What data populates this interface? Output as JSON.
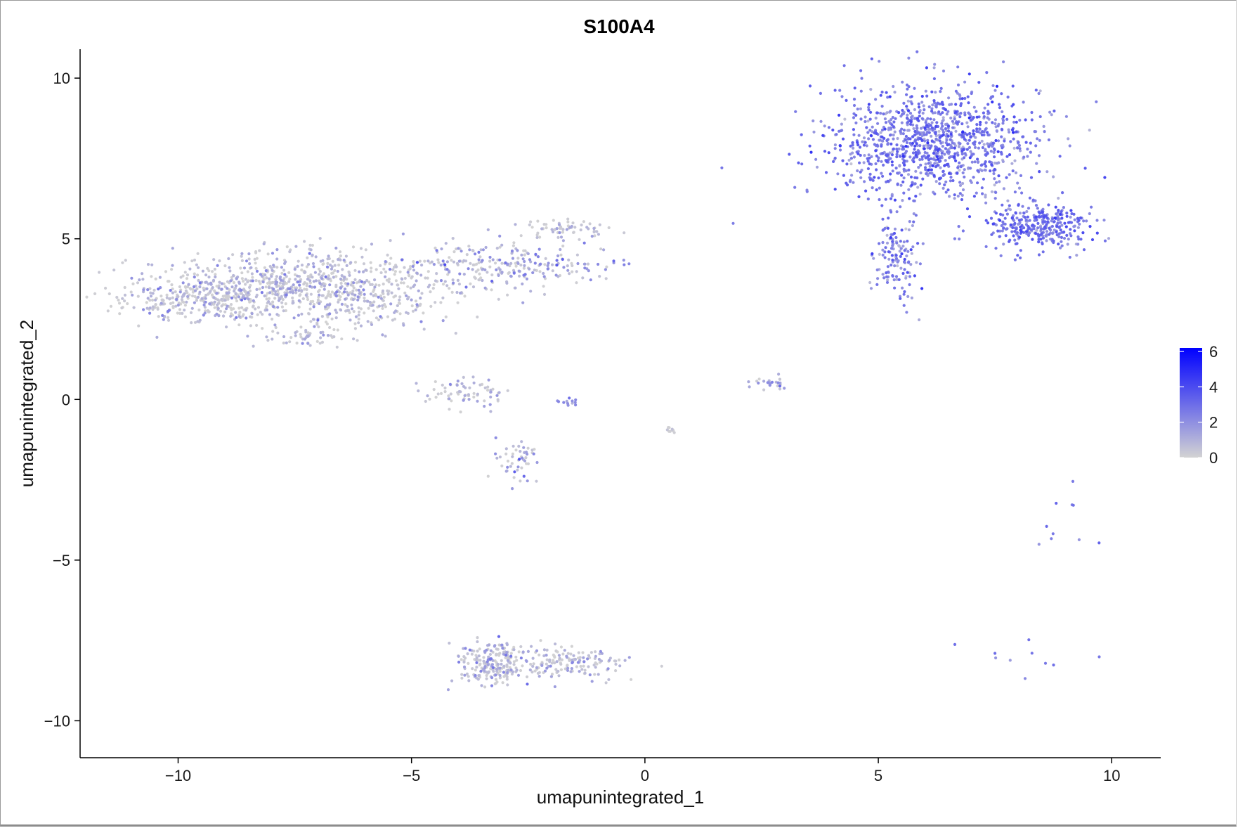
{
  "chart_data": {
    "type": "scatter",
    "title": "S100A4",
    "xlabel": "umapunintegrated_1",
    "ylabel": "umapunintegrated_2",
    "xlim": [
      -12.1,
      11.05
    ],
    "ylim": [
      -11.15,
      10.9
    ],
    "x_ticks": [
      -10,
      -5,
      0,
      5,
      10
    ],
    "y_ticks": [
      -10,
      -5,
      0,
      5,
      10
    ],
    "x_tick_labels": [
      "−10",
      "−5",
      "0",
      "5",
      "10"
    ],
    "y_tick_labels": [
      "−10",
      "−5",
      "0",
      "5",
      "10"
    ],
    "grid": false,
    "color_scale": {
      "name": "expression",
      "low_color": "#d3d3d3",
      "high_color": "#0000ff",
      "min": 0,
      "max": 6.2,
      "ticks": [
        0,
        2,
        4,
        6
      ],
      "tick_labels": [
        "0",
        "2",
        "4",
        "6"
      ]
    },
    "legend_placement": "right",
    "clusters": [
      {
        "cx": 6.2,
        "cy": 8.0,
        "sx": 1.1,
        "sy": 0.9,
        "n": 1100,
        "expr": 2.6,
        "spread": 0.8
      },
      {
        "cx": 8.4,
        "cy": 5.4,
        "sx": 0.55,
        "sy": 0.4,
        "n": 320,
        "expr": 2.7,
        "spread": 0.8
      },
      {
        "cx": 5.4,
        "cy": 4.5,
        "sx": 0.25,
        "sy": 0.8,
        "n": 140,
        "expr": 2.3,
        "spread": 0.9
      },
      {
        "cx": -7.2,
        "cy": 3.5,
        "sx": 1.6,
        "sy": 0.55,
        "n": 900,
        "expr": 0.35,
        "spread": 0.9
      },
      {
        "cx": -9.8,
        "cy": 3.1,
        "sx": 0.8,
        "sy": 0.3,
        "n": 220,
        "expr": 0.4,
        "spread": 0.9
      },
      {
        "cx": -3.0,
        "cy": 4.2,
        "sx": 1.0,
        "sy": 0.35,
        "n": 230,
        "expr": 0.9,
        "spread": 1.2
      },
      {
        "cx": -1.7,
        "cy": 5.3,
        "sx": 0.4,
        "sy": 0.15,
        "n": 60,
        "expr": 0.5,
        "spread": 0.8
      },
      {
        "cx": -7.0,
        "cy": 2.0,
        "sx": 0.6,
        "sy": 0.2,
        "n": 60,
        "expr": 0.3,
        "spread": 0.8
      },
      {
        "cx": -3.9,
        "cy": 0.2,
        "sx": 0.5,
        "sy": 0.2,
        "n": 70,
        "expr": 0.3,
        "spread": 0.8
      },
      {
        "cx": -2.7,
        "cy": -1.9,
        "sx": 0.25,
        "sy": 0.35,
        "n": 50,
        "expr": 0.6,
        "spread": 1.0
      },
      {
        "cx": -1.6,
        "cy": -0.1,
        "sx": 0.15,
        "sy": 0.05,
        "n": 12,
        "expr": 2.0,
        "spread": 1.0
      },
      {
        "cx": 2.7,
        "cy": 0.5,
        "sx": 0.2,
        "sy": 0.1,
        "n": 25,
        "expr": 1.0,
        "spread": 1.0
      },
      {
        "cx": 0.6,
        "cy": -0.95,
        "sx": 0.07,
        "sy": 0.05,
        "n": 10,
        "expr": 0.2,
        "spread": 0.5
      },
      {
        "cx": -3.3,
        "cy": -8.2,
        "sx": 0.35,
        "sy": 0.35,
        "n": 200,
        "expr": 0.5,
        "spread": 1.0
      },
      {
        "cx": -1.7,
        "cy": -8.2,
        "sx": 0.7,
        "sy": 0.25,
        "n": 170,
        "expr": 0.35,
        "spread": 0.9
      },
      {
        "cx": 8.8,
        "cy": -4.0,
        "sx": 0.3,
        "sy": 0.9,
        "n": 10,
        "expr": 2.5,
        "spread": 0.5
      },
      {
        "cx": 8.1,
        "cy": -8.2,
        "sx": 0.6,
        "sy": 0.4,
        "n": 10,
        "expr": 2.6,
        "spread": 0.5
      }
    ]
  }
}
